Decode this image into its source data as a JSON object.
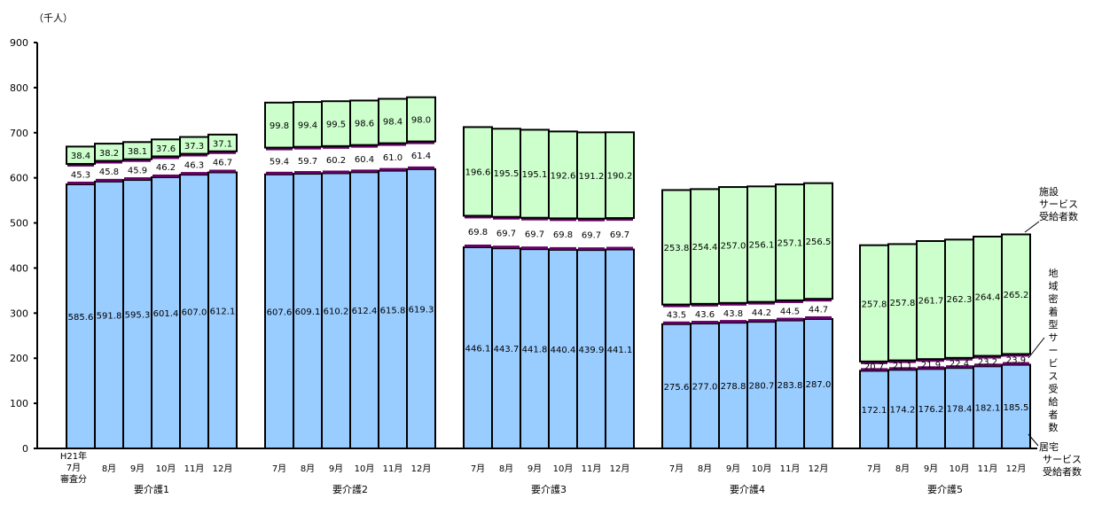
{
  "chart_data": {
    "type": "bar",
    "stacked": true,
    "unit_label": "（千人）",
    "ylim": [
      0,
      900
    ],
    "yticks": [
      0,
      100,
      200,
      300,
      400,
      500,
      600,
      700,
      800,
      900
    ],
    "months": [
      "7月",
      "8月",
      "9月",
      "10月",
      "11月",
      "12月"
    ],
    "first_month_label": [
      "H21年",
      "7月",
      "審査分"
    ],
    "groups": [
      {
        "name": "要介護1",
        "home": [
          585.6,
          591.8,
          595.3,
          601.4,
          607.0,
          612.1
        ],
        "community": [
          45.3,
          45.8,
          45.9,
          46.2,
          46.3,
          46.7
        ],
        "facility": [
          38.4,
          38.2,
          38.1,
          37.6,
          37.3,
          37.1
        ]
      },
      {
        "name": "要介護2",
        "home": [
          607.6,
          609.1,
          610.2,
          612.4,
          615.8,
          619.3
        ],
        "community": [
          59.4,
          59.7,
          60.2,
          60.4,
          61.0,
          61.4
        ],
        "facility": [
          99.8,
          99.4,
          99.5,
          98.6,
          98.4,
          98.0
        ]
      },
      {
        "name": "要介護3",
        "home": [
          446.1,
          443.7,
          441.8,
          440.4,
          439.9,
          441.1
        ],
        "community": [
          69.8,
          69.7,
          69.7,
          69.8,
          69.7,
          69.7
        ],
        "facility": [
          196.6,
          195.5,
          195.1,
          192.6,
          191.2,
          190.2
        ]
      },
      {
        "name": "要介護4",
        "home": [
          275.6,
          277.0,
          278.8,
          280.7,
          283.8,
          287.0
        ],
        "community": [
          43.5,
          43.6,
          43.8,
          44.2,
          44.5,
          44.7
        ],
        "facility": [
          253.8,
          254.4,
          257.0,
          256.1,
          257.1,
          256.5
        ]
      },
      {
        "name": "要介護5",
        "home": [
          172.1,
          174.2,
          176.2,
          178.4,
          182.1,
          185.5
        ],
        "community": [
          20.7,
          21.1,
          21.9,
          22.4,
          23.2,
          23.9
        ],
        "facility": [
          257.8,
          257.8,
          261.7,
          262.3,
          264.4,
          265.2
        ]
      }
    ],
    "series_labels": {
      "facility": [
        "施設",
        "サービス",
        "受給者数"
      ],
      "community": "地域密着型サービス受給者数",
      "home": [
        "居宅",
        "サービス",
        "受給者数"
      ]
    },
    "colors": {
      "home": "#99ccff",
      "community": "#ffffff",
      "band": "#660066",
      "facility": "#ccffcc"
    }
  }
}
